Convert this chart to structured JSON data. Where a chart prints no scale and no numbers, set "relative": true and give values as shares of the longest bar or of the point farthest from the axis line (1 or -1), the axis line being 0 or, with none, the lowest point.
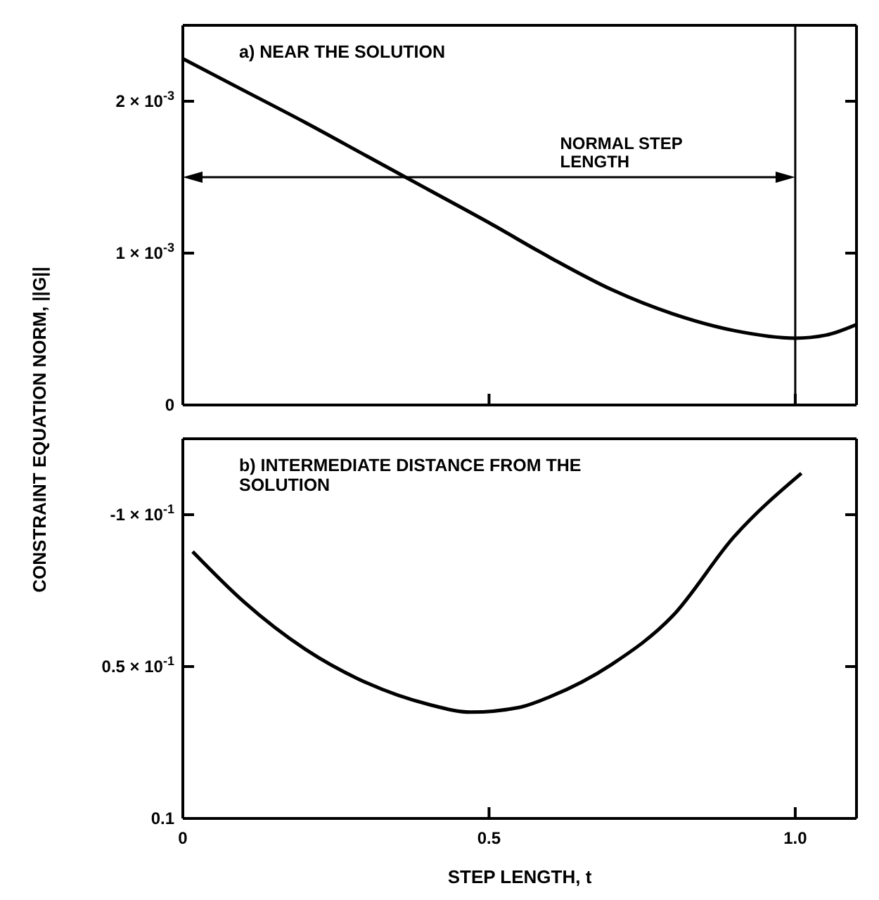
{
  "chart_data": [
    {
      "type": "line",
      "title": "a) NEAR THE SOLUTION",
      "ylabel": "CONSTRAINT EQUATION NORM, ||G||",
      "xlim": [
        0,
        1.1
      ],
      "xticks": [
        0,
        0.5,
        1
      ],
      "tick_labels": "y",
      "ylim": [
        0,
        0.0025
      ],
      "yticks": [
        0,
        {
          "value": 0.001,
          "label": "1 × 10$^{-3}$"
        },
        {
          "value": 0.002,
          "label": "2 × 10$^{-3}$"
        }
      ],
      "series": [
        {
          "color": "#000000",
          "x": [
            0,
            0.1,
            0.2,
            0.3,
            0.4,
            0.5,
            0.6,
            0.7,
            0.8,
            0.9,
            1.0,
            1.05,
            1.1
          ],
          "values": [
            0.00228,
            0.00207,
            0.00186,
            0.00164,
            0.00142,
            0.0012,
            0.00097,
            0.00076,
            0.0006,
            0.00049,
            0.00044,
            0.00046,
            0.00053
          ]
        }
      ],
      "ref_lines": [
        {
          "axis": "x",
          "value": 1.0,
          "color": "#000000"
        }
      ],
      "annotations": [
        "NORMAL STEP LENGTH"
      ],
      "marker": "none",
      "line_style": "solid",
      "grid": false,
      "legend": false
    },
    {
      "type": "line",
      "title": "b) INTERMEDIATE DISTANCE FROM THE SOLUTION",
      "xlabel": "STEP LENGTH, t",
      "xlim": [
        0,
        1.1
      ],
      "xticks": [
        0,
        0.5,
        {
          "value": 1,
          "label": "1.0"
        }
      ],
      "relative": true,
      "annotations": [
        "-1 × 10$^{-1}$",
        "0.5 × 10$^{-1}$",
        "0.1"
      ],
      "series": [
        {
          "color": "#000000",
          "x": [
            0.016,
            0.1,
            0.2,
            0.3,
            0.4,
            0.47,
            0.55,
            0.6,
            0.7,
            0.8,
            0.9,
            1.01
          ],
          "values": [
            0.773,
            0.627,
            0.49,
            0.393,
            0.331,
            0.308,
            0.322,
            0.353,
            0.446,
            0.587,
            0.816,
            1
          ]
        }
      ],
      "marker": "none",
      "line_style": "solid",
      "grid": false,
      "legend": false
    }
  ]
}
